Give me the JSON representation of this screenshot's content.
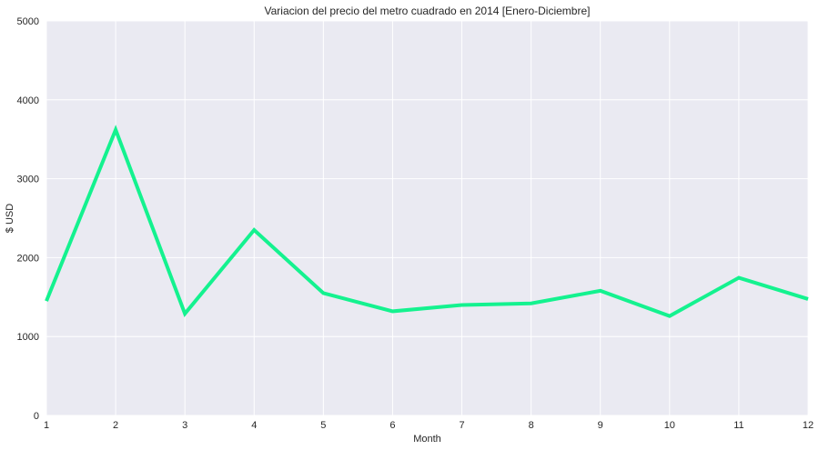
{
  "chart_data": {
    "type": "line",
    "title": "Variacion del precio del metro cuadrado en 2014 [Enero-Diciembre]",
    "xlabel": "Month",
    "ylabel": "$ USD",
    "x": [
      1,
      2,
      3,
      4,
      5,
      6,
      7,
      8,
      9,
      10,
      11,
      12
    ],
    "x_ticks": [
      "1",
      "2",
      "3",
      "4",
      "5",
      "6",
      "7",
      "8",
      "9",
      "10",
      "11",
      "12"
    ],
    "y_ticks": [
      "0",
      "1000",
      "2000",
      "3000",
      "4000",
      "5000"
    ],
    "xlim": [
      1,
      12
    ],
    "ylim": [
      0,
      5000
    ],
    "grid": true,
    "series": [
      {
        "values": [
          1450,
          3620,
          1290,
          2350,
          1550,
          1320,
          1400,
          1420,
          1580,
          1260,
          1745,
          1475
        ],
        "color": "#14f28f"
      }
    ],
    "colors": {
      "plot_background": "#eaeaf2",
      "grid": "#ffffff",
      "line": "#14f28f"
    }
  }
}
